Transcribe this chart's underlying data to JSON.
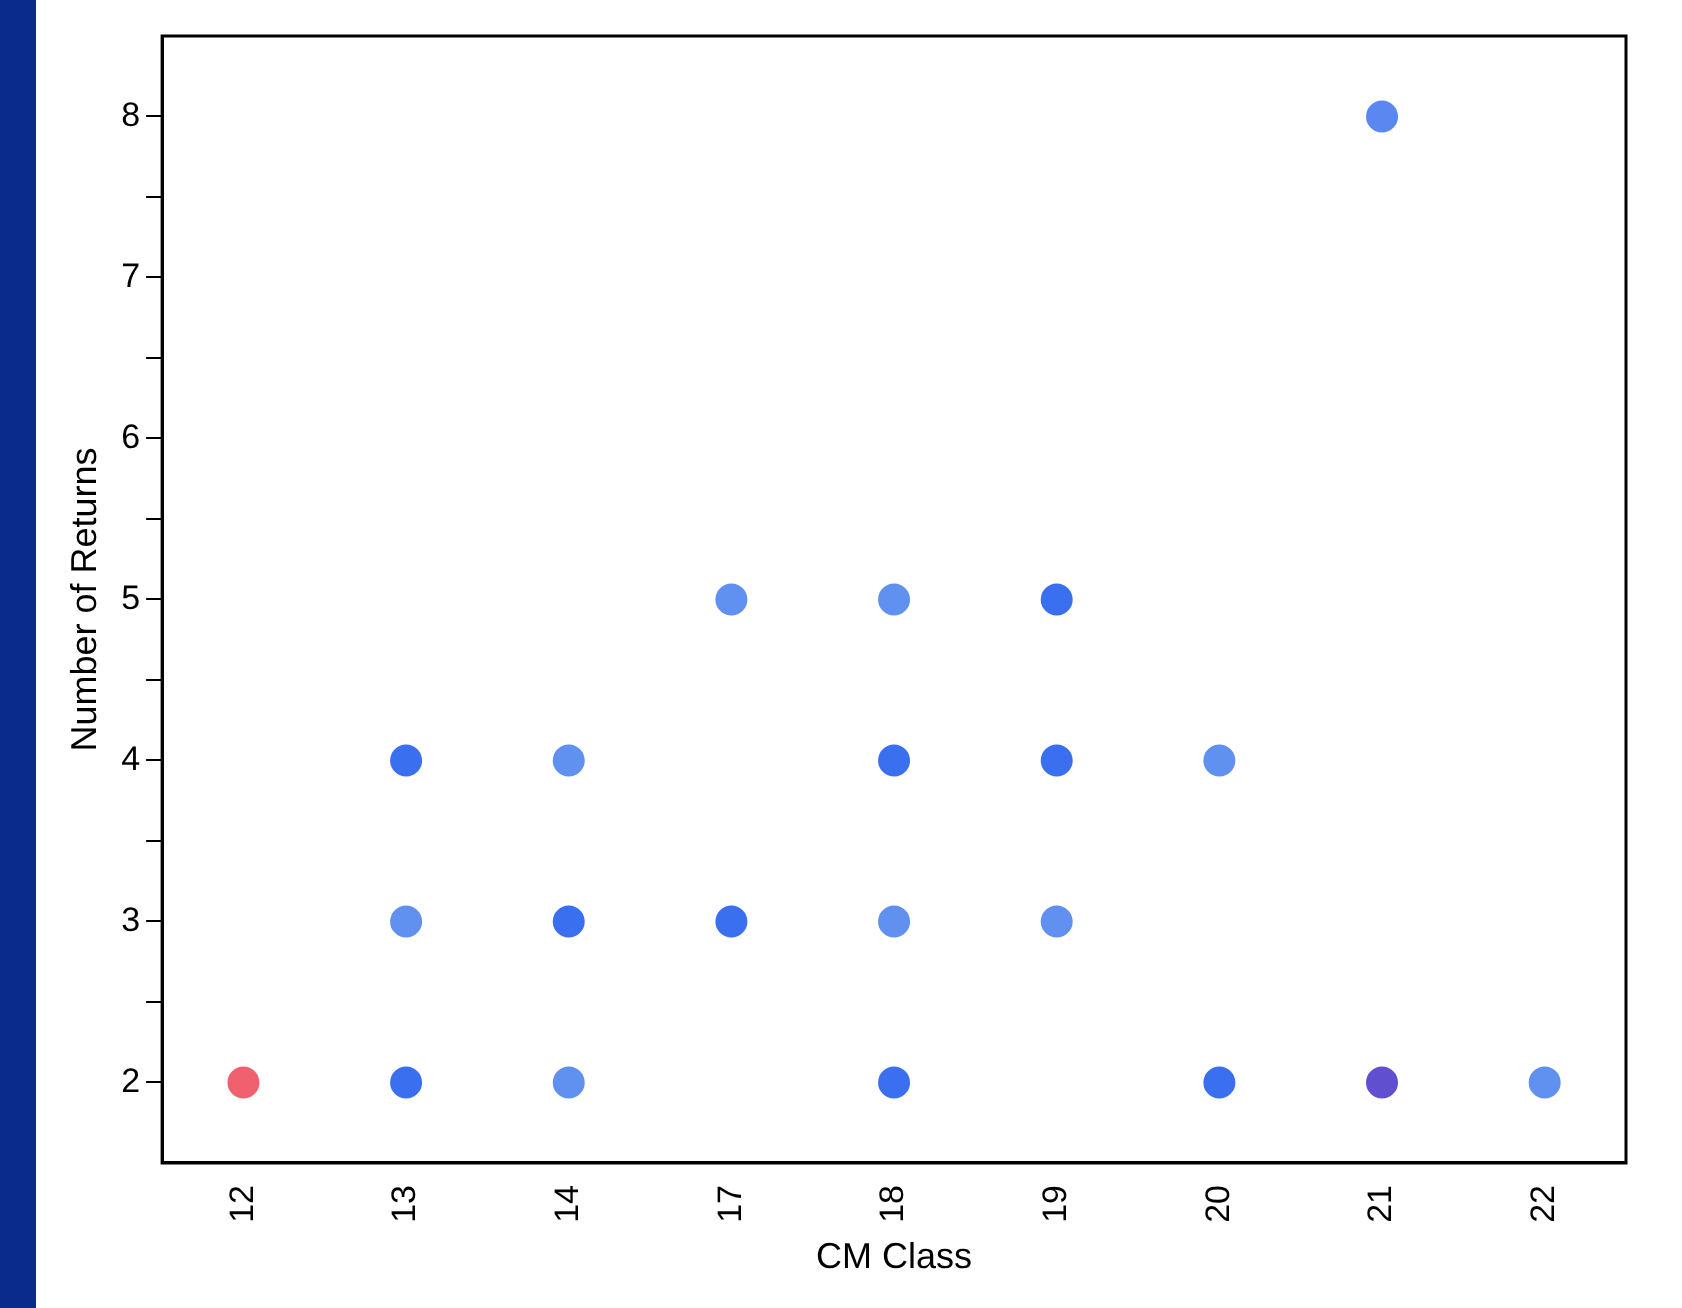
{
  "chart_data": {
    "type": "scatter",
    "xlabel": "CM Class",
    "ylabel": "Number of Returns",
    "categories": [
      "12",
      "13",
      "14",
      "17",
      "18",
      "19",
      "20",
      "21",
      "22"
    ],
    "series": [
      {
        "x": [
          "12",
          "13",
          "13",
          "13",
          "14",
          "14",
          "14",
          "17",
          "17",
          "18",
          "18",
          "18",
          "18",
          "19",
          "19",
          "19",
          "20",
          "20",
          "21",
          "21",
          "22"
        ],
        "values": [
          2,
          4,
          3,
          2,
          4,
          3,
          2,
          5,
          3,
          5,
          4,
          3,
          2,
          5,
          4,
          3,
          4,
          2,
          8,
          2,
          2
        ],
        "colors": [
          "#f0606e",
          "#3a70f0",
          "#6090f0",
          "#3a70f0",
          "#6090f0",
          "#3a70f0",
          "#6090f0",
          "#6090f0",
          "#3a70f0",
          "#6090f0",
          "#3a70f0",
          "#6090f0",
          "#3a70f0",
          "#3a70f0",
          "#3a70f0",
          "#6090f0",
          "#6090f0",
          "#3a70f0",
          "#5a88f0",
          "#6050d0",
          "#6090f0"
        ]
      }
    ],
    "ylim": [
      1.5,
      8.5
    ],
    "yticks": [
      2,
      {
        "value": 2.5,
        "label": null
      },
      3,
      {
        "value": 3.5,
        "label": null
      },
      4,
      {
        "value": 4.5,
        "label": null
      },
      5,
      {
        "value": 5.5,
        "label": null
      },
      6,
      {
        "value": 6.5,
        "label": null
      },
      7,
      {
        "value": 7.5,
        "label": null
      },
      8
    ],
    "grid": false,
    "legend": false,
    "marker": "circle"
  }
}
